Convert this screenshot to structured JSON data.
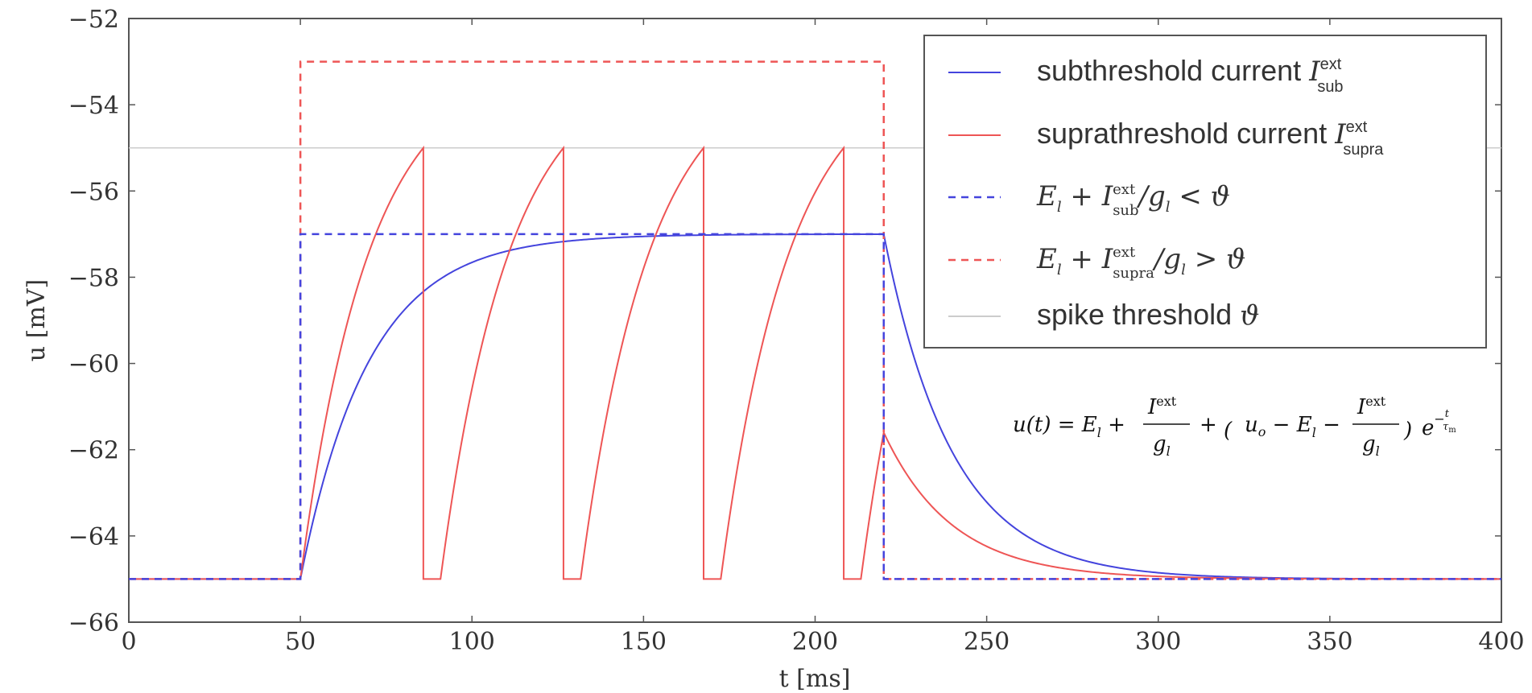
{
  "chart_data": {
    "type": "line",
    "xlabel": "t [ms]",
    "ylabel": "u [mV]",
    "xlim": [
      0,
      400
    ],
    "ylim": [
      -66,
      -52
    ],
    "xticks": [
      0,
      50,
      100,
      150,
      200,
      250,
      300,
      350,
      400
    ],
    "yticks": [
      -66,
      -64,
      -62,
      -60,
      -58,
      -56,
      -54,
      -52
    ],
    "xtick_labels": [
      "0",
      "50",
      "100",
      "150",
      "200",
      "250",
      "300",
      "350",
      "400"
    ],
    "ytick_labels": [
      "−66",
      "−64",
      "−62",
      "−60",
      "−58",
      "−56",
      "−54",
      "−52"
    ],
    "grid": false,
    "legend_position": "top-right",
    "params": {
      "E_l": -65,
      "threshold": -55,
      "tau_m": 20,
      "refractory_ms": 5,
      "stim_on": 50,
      "stim_off": 220,
      "sub_asymptote": -57,
      "supra_asymptote": -53
    },
    "series": [
      {
        "name": "subthreshold current I_sub^ext",
        "color": "#4444dd",
        "style": "solid"
      },
      {
        "name": "suprathreshold current I_supra^ext",
        "color": "#ee5555",
        "style": "solid"
      },
      {
        "name": "E_l + I_sub^ext / g_l < ϑ",
        "color": "#4444dd",
        "style": "dashed",
        "points": [
          [
            0,
            -65
          ],
          [
            50,
            -65
          ],
          [
            50,
            -57
          ],
          [
            220,
            -57
          ],
          [
            220,
            -65
          ],
          [
            400,
            -65
          ]
        ]
      },
      {
        "name": "E_l + I_supra^ext / g_l > ϑ",
        "color": "#ee5555",
        "style": "dashed",
        "points": [
          [
            0,
            -65
          ],
          [
            50,
            -65
          ],
          [
            50,
            -53
          ],
          [
            220,
            -53
          ],
          [
            220,
            -65
          ],
          [
            400,
            -65
          ]
        ]
      },
      {
        "name": "spike threshold ϑ",
        "color": "#cccccc",
        "style": "solid",
        "points": [
          [
            0,
            -55
          ],
          [
            400,
            -55
          ]
        ]
      }
    ],
    "legend": [
      {
        "text": "subthreshold current ",
        "math": "I",
        "sup": "ext",
        "sub": "sub"
      },
      {
        "text": "suprathreshold current ",
        "math": "I",
        "sup": "ext",
        "sub": "supra"
      },
      {
        "text": "",
        "math": "E",
        "eq": "sub"
      },
      {
        "text": "",
        "math": "E",
        "eq": "supra"
      },
      {
        "text": "spike threshold ",
        "math": "ϑ"
      }
    ],
    "equation": "u(t) = E_l + I^ext/g_l + (u_o − E_l − I^ext/g_l) e^(−t/τ_m)"
  }
}
